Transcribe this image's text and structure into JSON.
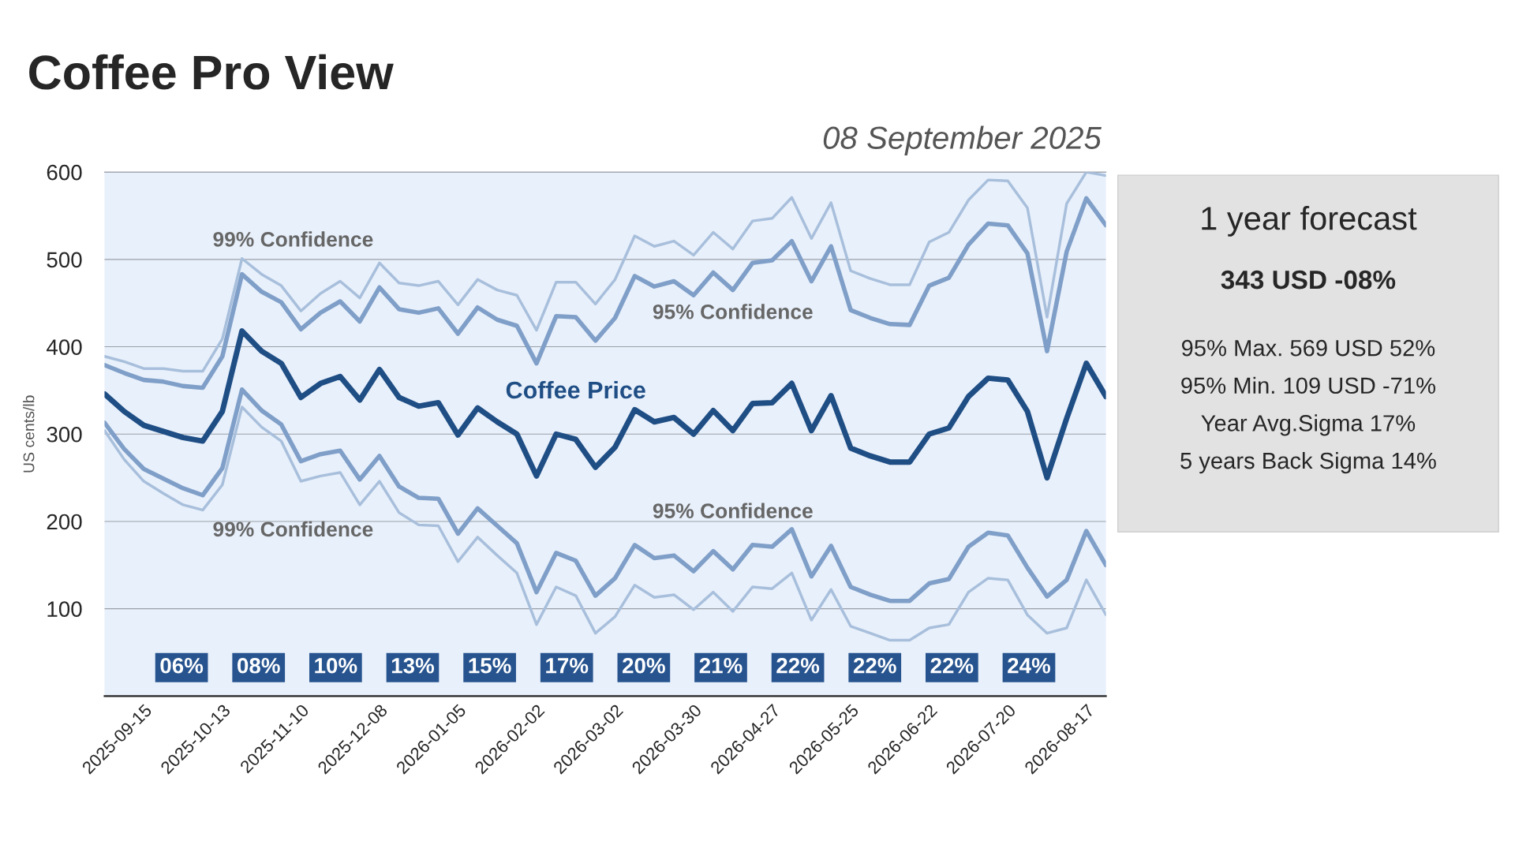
{
  "chart_data": [
    {
      "type": "line",
      "title": "Coffee Pro View",
      "subtitle": "08 September 2025",
      "ylabel": "US cents/lb",
      "categories": [
        null,
        null,
        "2025-09-15",
        null,
        null,
        null,
        "2025-10-13",
        null,
        null,
        null,
        "2025-11-10",
        null,
        null,
        null,
        "2025-12-08",
        null,
        null,
        null,
        "2026-01-05",
        null,
        null,
        null,
        "2026-02-02",
        null,
        null,
        null,
        "2026-03-02",
        null,
        null,
        null,
        "2026-03-30",
        null,
        null,
        null,
        "2026-04-27",
        null,
        null,
        null,
        "2026-05-25",
        null,
        null,
        null,
        "2026-06-22",
        null,
        null,
        null,
        "2026-07-20",
        null,
        null,
        null,
        "2026-08-17",
        null
      ],
      "series": [
        {
          "name": "99% Confidence",
          "color": "#a8bfdc",
          "values": [
            389,
            383,
            375,
            375,
            372,
            372,
            409,
            501,
            483,
            470,
            441,
            461,
            475,
            456,
            496,
            473,
            470,
            475,
            448,
            477,
            465,
            459,
            419,
            474,
            474,
            449,
            477,
            527,
            515,
            521,
            505,
            531,
            512,
            544,
            547,
            571,
            524,
            565,
            487,
            478,
            471,
            471,
            520,
            531,
            568,
            591,
            590,
            559,
            434,
            564,
            600,
            596
          ]
        },
        {
          "name": "95% Confidence",
          "color": "#7f9fc8",
          "values": [
            379,
            370,
            362,
            360,
            355,
            353,
            389,
            483,
            463,
            451,
            420,
            439,
            452,
            429,
            468,
            443,
            439,
            444,
            415,
            445,
            431,
            424,
            381,
            435,
            434,
            407,
            433,
            481,
            469,
            475,
            459,
            485,
            465,
            496,
            499,
            521,
            475,
            515,
            442,
            433,
            426,
            425,
            470,
            479,
            517,
            541,
            539,
            507,
            395,
            509,
            570,
            539
          ]
        },
        {
          "name": "Coffee Price",
          "color": "#1f4e85",
          "values": [
            346,
            326,
            310,
            303,
            296,
            292,
            326,
            418,
            395,
            381,
            342,
            358,
            366,
            339,
            374,
            342,
            332,
            336,
            299,
            330,
            314,
            300,
            252,
            300,
            294,
            262,
            285,
            328,
            314,
            319,
            300,
            327,
            304,
            335,
            336,
            358,
            304,
            344,
            284,
            275,
            268,
            268,
            300,
            307,
            343,
            364,
            362,
            326,
            250,
            318,
            381,
            343
          ]
        },
        {
          "name": "95% Confidence",
          "color": "#7f9fc8",
          "values": [
            313,
            283,
            260,
            249,
            238,
            230,
            261,
            351,
            327,
            311,
            269,
            277,
            281,
            248,
            275,
            240,
            227,
            226,
            186,
            215,
            195,
            175,
            119,
            164,
            155,
            115,
            135,
            173,
            158,
            161,
            143,
            166,
            145,
            173,
            171,
            191,
            137,
            172,
            125,
            116,
            109,
            109,
            129,
            134,
            171,
            187,
            184,
            147,
            114,
            133,
            189,
            150
          ]
        },
        {
          "name": "99% Confidence",
          "color": "#a8bfdc",
          "values": [
            304,
            271,
            246,
            232,
            219,
            213,
            242,
            331,
            308,
            292,
            246,
            252,
            256,
            219,
            246,
            210,
            196,
            195,
            154,
            182,
            161,
            141,
            82,
            125,
            115,
            72,
            91,
            127,
            113,
            116,
            99,
            119,
            97,
            125,
            123,
            141,
            87,
            122,
            80,
            72,
            64,
            64,
            78,
            82,
            119,
            135,
            133,
            93,
            72,
            78,
            133,
            93
          ]
        }
      ],
      "ylim": [
        0,
        600
      ],
      "yticks": [
        100,
        200,
        300,
        400,
        500,
        600
      ],
      "grid": "y",
      "annotations": [
        "06%",
        "08%",
        "10%",
        "13%",
        "15%",
        "17%",
        "20%",
        "21%",
        "22%",
        "22%",
        "22%",
        "24%"
      ]
    },
    {
      "type": "other",
      "title": "1 year forecast",
      "annotations": [
        "343 USD -08%",
        "95% Max. 569 USD 52%",
        "95% Min. 109 USD -71%",
        "Year Avg.Sigma 17%",
        "5 years Back Sigma 14%"
      ]
    }
  ]
}
